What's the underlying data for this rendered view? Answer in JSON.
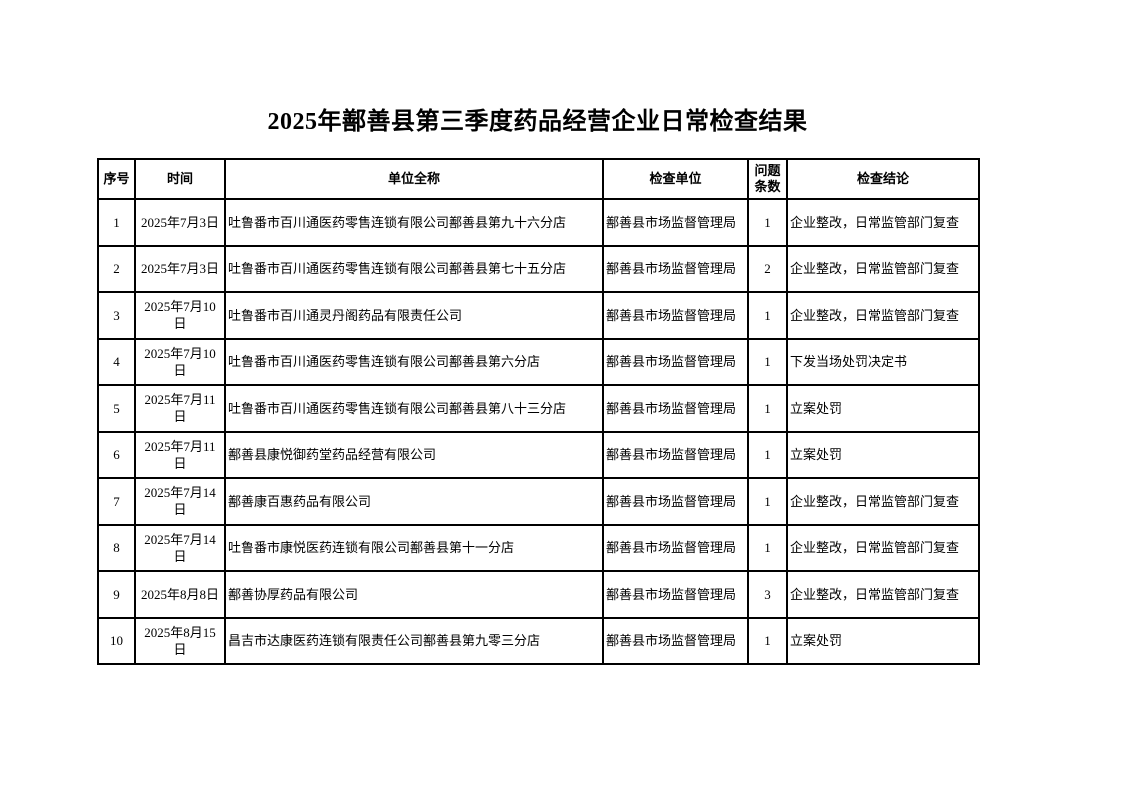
{
  "title": "2025年鄯善县第三季度药品经营企业日常检查结果",
  "table": {
    "columns": [
      "序号",
      "时间",
      "单位全称",
      "检查单位",
      "问题条数",
      "检查结论"
    ],
    "rows": [
      [
        "1",
        "2025年7月3日",
        "吐鲁番市百川通医药零售连锁有限公司鄯善县第九十六分店",
        "鄯善县市场监督管理局",
        "1",
        "企业整改，日常监管部门复查"
      ],
      [
        "2",
        "2025年7月3日",
        "吐鲁番市百川通医药零售连锁有限公司鄯善县第七十五分店",
        "鄯善县市场监督管理局",
        "2",
        "企业整改，日常监管部门复查"
      ],
      [
        "3",
        "2025年7月10日",
        "吐鲁番市百川通灵丹阁药品有限责任公司",
        "鄯善县市场监督管理局",
        "1",
        "企业整改，日常监管部门复查"
      ],
      [
        "4",
        "2025年7月10日",
        "吐鲁番市百川通医药零售连锁有限公司鄯善县第六分店",
        "鄯善县市场监督管理局",
        "1",
        "下发当场处罚决定书"
      ],
      [
        "5",
        "2025年7月11日",
        "吐鲁番市百川通医药零售连锁有限公司鄯善县第八十三分店",
        "鄯善县市场监督管理局",
        "1",
        "立案处罚"
      ],
      [
        "6",
        "2025年7月11日",
        "鄯善县康悦御药堂药品经营有限公司",
        "鄯善县市场监督管理局",
        "1",
        "立案处罚"
      ],
      [
        "7",
        "2025年7月14日",
        "鄯善康百惠药品有限公司",
        "鄯善县市场监督管理局",
        "1",
        "企业整改，日常监管部门复查"
      ],
      [
        "8",
        "2025年7月14日",
        "吐鲁番市康悦医药连锁有限公司鄯善县第十一分店",
        "鄯善县市场监督管理局",
        "1",
        "企业整改，日常监管部门复查"
      ],
      [
        "9",
        "2025年8月8日",
        "鄯善协厚药品有限公司",
        "鄯善县市场监督管理局",
        "3",
        "企业整改，日常监管部门复查"
      ],
      [
        "10",
        "2025年8月15日",
        "昌吉市达康医药连锁有限责任公司鄯善县第九零三分店",
        "鄯善县市场监督管理局",
        "1",
        "立案处罚"
      ]
    ]
  }
}
